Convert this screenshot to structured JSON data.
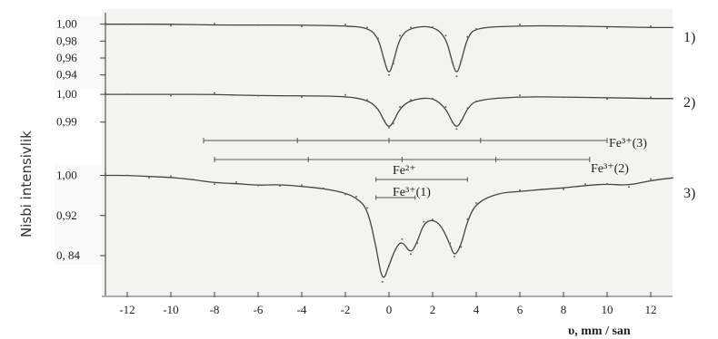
{
  "chart_data": {
    "type": "line",
    "xlabel": "υ,  mm / san",
    "ylabel": "Nisbi intensivlik",
    "xlim": [
      -13,
      13
    ],
    "x_ticks": [
      "-12",
      "-10",
      "-8",
      "-6",
      "-4",
      "-2",
      "0",
      "2",
      "4",
      "6",
      "8",
      "10",
      "12"
    ],
    "x_tick_values": [
      -12,
      -10,
      -8,
      -6,
      -4,
      -2,
      0,
      2,
      4,
      6,
      8,
      10,
      12
    ],
    "spectra": [
      {
        "label": "1)",
        "y_ticks": [
          "1,00",
          "0,98",
          "0,96",
          "0,94"
        ],
        "y_tick_values": [
          1.0,
          0.98,
          0.96,
          0.94
        ],
        "ylim": [
          0.93,
          1.005
        ],
        "x": [
          -13,
          -12,
          -10,
          -8,
          -6,
          -4,
          -2,
          -1,
          -0.5,
          -0.2,
          0,
          0.2,
          0.5,
          1,
          2,
          2.6,
          2.9,
          3.1,
          3.3,
          3.6,
          4,
          6,
          8,
          10,
          12,
          13
        ],
        "y": [
          1.0,
          1.0,
          1.0,
          0.999,
          0.999,
          0.999,
          0.998,
          0.996,
          0.985,
          0.955,
          0.94,
          0.955,
          0.985,
          0.996,
          0.998,
          0.985,
          0.955,
          0.94,
          0.955,
          0.985,
          0.996,
          0.998,
          0.998,
          0.997,
          0.996,
          0.996
        ]
      },
      {
        "label": "2)",
        "y_ticks": [
          "1,00",
          "0,99"
        ],
        "y_tick_values": [
          1.0,
          0.99
        ],
        "ylim": [
          0.985,
          1.002
        ],
        "x": [
          -13,
          -12,
          -10,
          -8,
          -6,
          -4,
          -2,
          -1,
          -0.5,
          -0.2,
          0,
          0.2,
          0.5,
          1,
          2,
          2.6,
          2.9,
          3.1,
          3.3,
          3.6,
          4,
          6,
          8,
          10,
          12,
          13
        ],
        "y": [
          1.0,
          1.0,
          1.0,
          1.0,
          0.9995,
          0.9995,
          0.9993,
          0.998,
          0.995,
          0.99,
          0.988,
          0.99,
          0.995,
          0.998,
          0.999,
          0.995,
          0.99,
          0.988,
          0.99,
          0.995,
          0.998,
          0.9992,
          0.999,
          0.9988,
          0.9985,
          0.9985
        ]
      },
      {
        "label": "3)",
        "y_ticks": [
          "1,00",
          "0,92",
          "0, 84"
        ],
        "y_tick_values": [
          1.0,
          0.92,
          0.84
        ],
        "ylim": [
          0.775,
          1.01
        ],
        "x": [
          -13,
          -12,
          -11,
          -10,
          -9,
          -8,
          -7,
          -6,
          -5,
          -4,
          -3,
          -2,
          -1.5,
          -1,
          -0.6,
          -0.3,
          0,
          0.3,
          0.6,
          1,
          1.3,
          1.6,
          2,
          2.4,
          2.8,
          3,
          3.3,
          3.6,
          4,
          5,
          6,
          7,
          8,
          9,
          10,
          11,
          12,
          13
        ],
        "y": [
          1.0,
          1.0,
          0.998,
          0.996,
          0.992,
          0.985,
          0.984,
          0.98,
          0.982,
          0.978,
          0.974,
          0.965,
          0.955,
          0.935,
          0.86,
          0.785,
          0.82,
          0.855,
          0.87,
          0.843,
          0.868,
          0.905,
          0.912,
          0.9,
          0.862,
          0.838,
          0.86,
          0.91,
          0.945,
          0.965,
          0.968,
          0.972,
          0.975,
          0.98,
          0.983,
          0.98,
          0.99,
          0.995
        ]
      }
    ],
    "annotations": [
      {
        "text": "Fe³⁺(3)",
        "x_start": -8.5,
        "x_end": 10,
        "ticks": [
          -8.5,
          -4.2,
          0,
          4.2,
          10
        ]
      },
      {
        "text": "Fe³⁺(2)",
        "x_start": -8,
        "x_end": 9.2,
        "ticks": [
          -8,
          -3.7,
          0.6,
          4.9,
          9.2
        ]
      },
      {
        "text": "Fe²⁺",
        "x_start": -0.6,
        "x_end": 3.6,
        "ticks": [
          -0.6,
          3.6
        ]
      },
      {
        "text": "Fe³⁺(1)",
        "x_start": -0.6,
        "x_end": 1.2,
        "ticks": [
          -0.6,
          1.2
        ]
      }
    ],
    "grid": false,
    "legend": "none"
  }
}
